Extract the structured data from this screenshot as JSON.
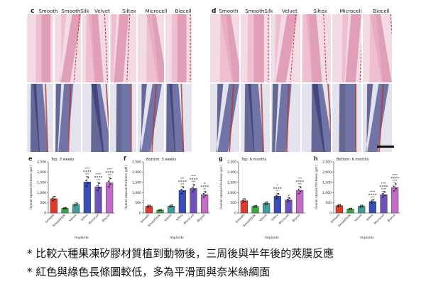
{
  "panels": {
    "c": {
      "letter": "c",
      "labels": [
        "Smooth",
        "SmoothSilk",
        "Velvet",
        "Siltex",
        "Microcell",
        "Biocell"
      ]
    },
    "d": {
      "letter": "d",
      "labels": [
        "Smooth",
        "SmoothSilk",
        "Velvet",
        "Siltex",
        "Microcell",
        "Biocell"
      ]
    }
  },
  "colors": {
    "bars": [
      "#e23a2a",
      "#3da63d",
      "#3f9e9a",
      "#3a4fb8",
      "#6f52b9",
      "#c36bc8"
    ]
  },
  "chart_data": [
    {
      "letter": "e",
      "type": "bar",
      "title": "Top: 3 weeks",
      "ylabel": "Overall capsule thickness (µm)",
      "xlabel": "Implants",
      "categories": [
        "Smooth",
        "SmoothSilk",
        "Velvet",
        "Siltex",
        "Microcell",
        "Biocell"
      ],
      "values": [
        700,
        230,
        420,
        1520,
        1280,
        1480
      ],
      "ylim": [
        0,
        2500
      ],
      "yticks": [
        "0",
        "500",
        "1,000",
        "1,500",
        "2,000",
        "2,500"
      ],
      "annotations": [
        "",
        "",
        "",
        "****\n####\n***",
        "****\n####\n***",
        "****\n####\n***"
      ]
    },
    {
      "letter": "f",
      "type": "bar",
      "title": "Bottom: 3 weeks",
      "ylabel": "Overall capsule thickness (µM)",
      "xlabel": "Implants",
      "categories": [
        "Smooth",
        "SmoothSilk",
        "Velvet",
        "Siltex",
        "Microcell",
        "Biocell"
      ],
      "values": [
        330,
        140,
        340,
        1100,
        1200,
        900
      ],
      "ylim": [
        0,
        2500
      ],
      "yticks": [
        "0",
        "500",
        "1,000",
        "1,500",
        "2,000",
        "2,500"
      ],
      "annotations": [
        "",
        "",
        "",
        "***\n####\n***",
        "****\n####\n***",
        "**\n####\n**"
      ]
    },
    {
      "letter": "g",
      "type": "bar",
      "title": "Top: 6 months",
      "ylabel": "Overall capsule thickness (µm)",
      "xlabel": "Implants",
      "categories": [
        "Smooth",
        "SmoothSilk",
        "Velvet",
        "Siltex",
        "Microcell",
        "Biocell"
      ],
      "values": [
        600,
        320,
        470,
        820,
        640,
        1100
      ],
      "ylim": [
        0,
        2500
      ],
      "yticks": [
        "0",
        "500",
        "1,000",
        "1,500",
        "2,000",
        "2,500"
      ],
      "annotations": [
        "",
        "",
        "",
        "*\n####\n**",
        "#",
        "***\n####\n***"
      ]
    },
    {
      "letter": "h",
      "type": "bar",
      "title": "Bottom: 6 months",
      "ylabel": "Overall capsule thickness (µm)",
      "xlabel": "Implants",
      "categories": [
        "Smooth",
        "SmoothSilk",
        "Velvet",
        "Siltex",
        "Microcell",
        "Biocell"
      ],
      "values": [
        360,
        200,
        330,
        560,
        900,
        1250
      ],
      "ylim": [
        0,
        2500
      ],
      "yticks": [
        "0",
        "500",
        "1,000",
        "1,500",
        "2,000",
        "2,500"
      ],
      "annotations": [
        "",
        "",
        "",
        "****\n####\n***",
        "****\n####\n****",
        "****\n####\n****"
      ]
    }
  ],
  "bullets": [
    "* 比較六種果凍矽膠材質植到動物後，三周後與半年後的莢膜反應",
    "* 紅色與綠色長條圖較低，多為平滑面與奈米絲綢面"
  ]
}
